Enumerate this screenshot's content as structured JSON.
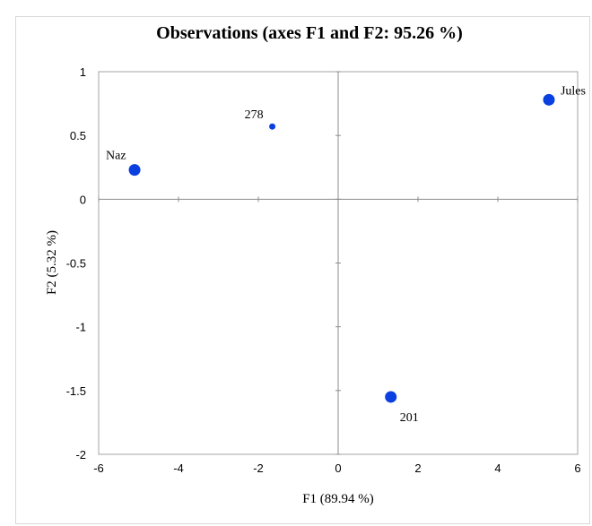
{
  "chart_data": {
    "type": "scatter",
    "title": "Observations (axes F1 and F2: 95.26 %)",
    "xlabel": "F1 (89.94 %)",
    "ylabel": "F2 (5.32 %)",
    "xlim": [
      -6,
      6
    ],
    "ylim": [
      -2,
      1
    ],
    "xticks": [
      -6,
      -4,
      -2,
      0,
      2,
      4,
      6
    ],
    "yticks": [
      1,
      0.5,
      0,
      -0.5,
      -1,
      -1.5,
      -2
    ],
    "grid": false,
    "points": [
      {
        "label": "Naz",
        "x": -5.1,
        "y": 0.23,
        "size": "large"
      },
      {
        "label": "278",
        "x": -1.65,
        "y": 0.57,
        "size": "small"
      },
      {
        "label": "Jules",
        "x": 5.28,
        "y": 0.78,
        "size": "large"
      },
      {
        "label": "201",
        "x": 1.32,
        "y": -1.55,
        "size": "large"
      }
    ],
    "marker_color": "#0a3fe0"
  }
}
